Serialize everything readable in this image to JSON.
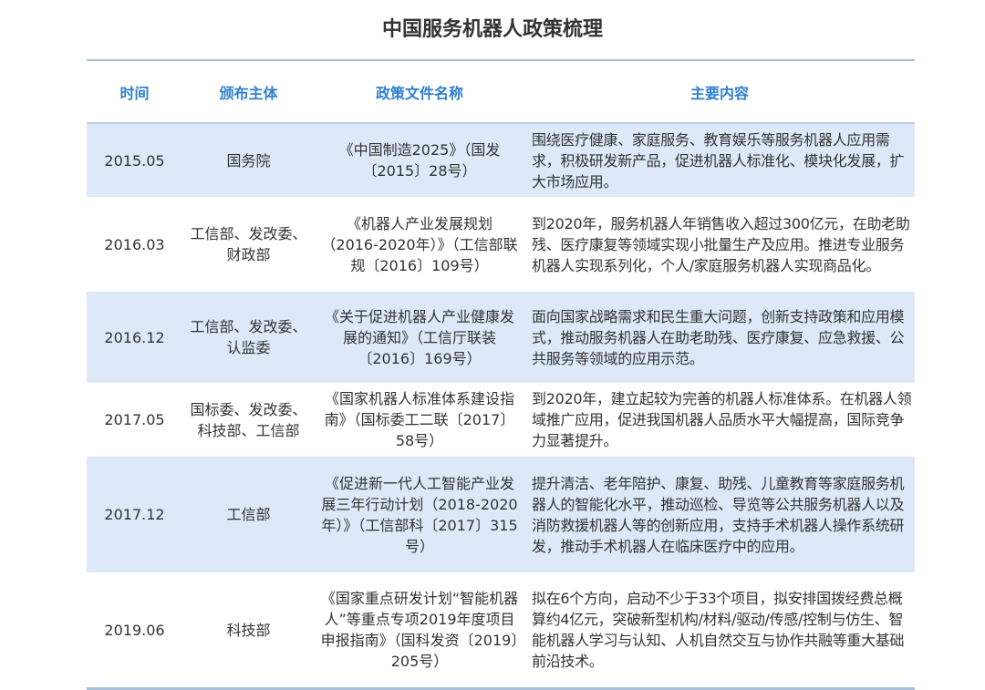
{
  "title": "中国服务机器人政策梳理",
  "colors": {
    "header_text": "#2f7fd1",
    "row_highlight": "#dde9f8",
    "rule": "#a9bfd6"
  },
  "columns": [
    "时间",
    "颁布主体",
    "政策文件名称",
    "主要内容"
  ],
  "rows": [
    {
      "time": "2015.05",
      "issuer": "国务院",
      "document": "《中国制造2025》（国发〔2015〕28号）",
      "content": "围绕医疗健康、家庭服务、教育娱乐等服务机器人应用需求，积极研发新产品，促进机器人标准化、模块化发展，扩大市场应用。"
    },
    {
      "time": "2016.03",
      "issuer": "工信部、发改委、财政部",
      "document": "《机器人产业发展规划（2016-2020年）》（工信部联规〔2016〕109号）",
      "content": "到2020年，服务机器人年销售收入超过300亿元，在助老助残、医疗康复等领域实现小批量生产及应用。推进专业服务机器人实现系列化，个人/家庭服务机器人实现商品化。"
    },
    {
      "time": "2016.12",
      "issuer": "工信部、发改委、认监委",
      "document": "《关于促进机器人产业健康发展的通知》（工信厅联装〔2016〕169号）",
      "content": "面向国家战略需求和民生重大问题，创新支持政策和应用模式，推动服务机器人在助老助残、医疗康复、应急救援、公共服务等领域的应用示范。"
    },
    {
      "time": "2017.05",
      "issuer": "国标委、发改委、科技部、工信部",
      "document": "《国家机器人标准体系建设指南》（国标委工二联〔2017〕58号）",
      "content": "到2020年，建立起较为完善的机器人标准体系。在机器人领域推广应用，促进我国机器人品质水平大幅提高，国际竞争力显著提升。"
    },
    {
      "time": "2017.12",
      "issuer": "工信部",
      "document": "《促进新一代人工智能产业发展三年行动计划（2018-2020年）》（工信部科〔2017〕315号）",
      "content": "提升清洁、老年陪护、康复、助残、儿童教育等家庭服务机器人的智能化水平，推动巡检、导览等公共服务机器人以及消防救援机器人等的创新应用，支持手术机器人操作系统研发，推动手术机器人在临床医疗中的应用。"
    },
    {
      "time": "2019.06",
      "issuer": "科技部",
      "document": "《国家重点研发计划“智能机器人”等重点专项2019年度项目申报指南》（国科发资〔2019〕205号）",
      "content": "拟在6个方向，启动不少于33个项目，拟安排国拨经费总概算约4亿元，突破新型机构/材料/驱动/传感/控制与仿生、智能机器人学习与认知、人机自然交互与协作共融等重大基础前沿技术。"
    }
  ]
}
